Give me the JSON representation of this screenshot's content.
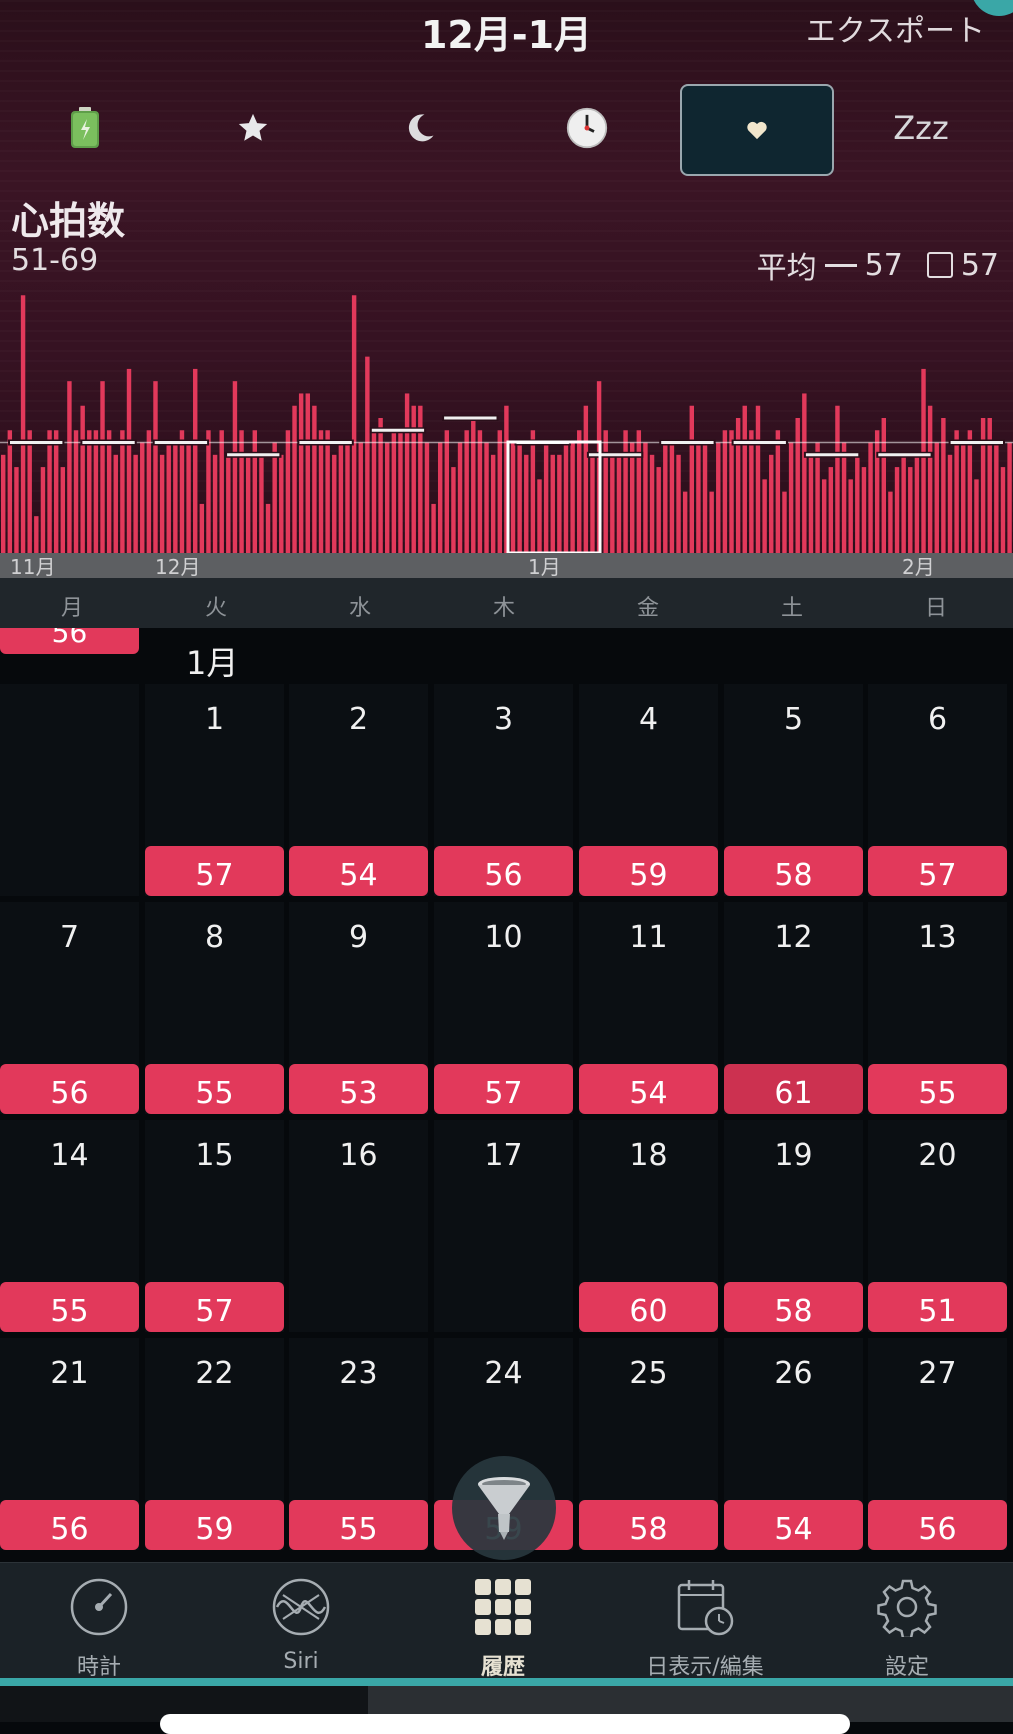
{
  "header": {
    "title": "12月-1月",
    "export_label": "エクスポート"
  },
  "category_tabs": [
    {
      "icon": "battery-icon",
      "selected": false
    },
    {
      "icon": "star-icon",
      "selected": false
    },
    {
      "icon": "moon-icon",
      "selected": false
    },
    {
      "icon": "clock-icon",
      "selected": false
    },
    {
      "icon": "heart-icon",
      "selected": true
    },
    {
      "icon": "zzz-icon",
      "label": "Zzz",
      "selected": false
    }
  ],
  "metric": {
    "title": "心拍数",
    "range": "51-69",
    "average_label": "平均",
    "average_value": "57",
    "box_value": "57"
  },
  "chart_data": {
    "type": "bar",
    "ylim": [
      48,
      70
    ],
    "values": [
      56,
      58,
      55,
      69,
      58,
      51,
      55,
      58,
      58,
      55,
      62,
      58,
      60,
      58,
      58,
      62,
      58,
      56,
      58,
      63,
      56,
      57,
      58,
      62,
      56,
      57,
      57,
      58,
      57,
      63,
      52,
      58,
      56,
      58,
      56,
      62,
      58,
      56,
      58,
      56,
      52,
      57,
      56,
      58,
      60,
      61,
      61,
      60,
      58,
      58,
      56,
      57,
      57,
      69,
      57,
      64,
      58,
      59,
      57,
      58,
      58,
      61,
      60,
      60,
      57,
      52,
      57,
      58,
      55,
      57,
      58,
      59,
      58,
      57,
      56,
      58,
      60,
      57,
      57,
      56,
      58,
      54,
      57,
      56,
      56,
      57,
      57,
      58,
      60,
      56,
      62,
      58,
      56,
      56,
      58,
      57,
      58,
      57,
      56,
      55,
      57,
      57,
      56,
      53,
      60,
      57,
      57,
      53,
      57,
      58,
      58,
      59,
      60,
      58,
      60,
      54,
      56,
      58,
      53,
      57,
      59,
      61,
      56,
      57,
      54,
      55,
      60,
      57,
      54,
      56,
      55,
      57,
      58,
      59,
      53,
      55,
      56,
      55,
      56,
      63,
      60,
      57,
      59,
      56,
      58,
      57,
      58,
      54,
      59,
      59,
      57,
      55,
      57
    ],
    "weekly_averages": [
      57,
      57,
      57,
      56,
      57,
      58,
      59,
      57,
      56,
      57,
      57,
      56,
      56,
      57
    ],
    "month_labels": [
      "11月",
      "12月",
      "1月",
      "2月"
    ],
    "average": 57,
    "grid": false
  },
  "calendar": {
    "weekdays": [
      "月",
      "火",
      "水",
      "木",
      "金",
      "土",
      "日"
    ],
    "month_label": "1月",
    "prev_week_value": "56",
    "days": [
      {
        "day": "",
        "value": ""
      },
      {
        "day": "1",
        "value": "57"
      },
      {
        "day": "2",
        "value": "54"
      },
      {
        "day": "3",
        "value": "56"
      },
      {
        "day": "4",
        "value": "59"
      },
      {
        "day": "5",
        "value": "58"
      },
      {
        "day": "6",
        "value": "57"
      },
      {
        "day": "7",
        "value": "56"
      },
      {
        "day": "8",
        "value": "55"
      },
      {
        "day": "9",
        "value": "53"
      },
      {
        "day": "10",
        "value": "57"
      },
      {
        "day": "11",
        "value": "54"
      },
      {
        "day": "12",
        "value": "61"
      },
      {
        "day": "13",
        "value": "55"
      },
      {
        "day": "14",
        "value": "55"
      },
      {
        "day": "15",
        "value": "57"
      },
      {
        "day": "16",
        "value": ""
      },
      {
        "day": "17",
        "value": ""
      },
      {
        "day": "18",
        "value": "60"
      },
      {
        "day": "19",
        "value": "58"
      },
      {
        "day": "20",
        "value": "51"
      },
      {
        "day": "21",
        "value": "56"
      },
      {
        "day": "22",
        "value": "59"
      },
      {
        "day": "23",
        "value": "55"
      },
      {
        "day": "24",
        "value": "59"
      },
      {
        "day": "25",
        "value": "58"
      },
      {
        "day": "26",
        "value": "54"
      },
      {
        "day": "27",
        "value": "56"
      }
    ]
  },
  "tabbar": [
    {
      "label": "時計",
      "icon": "gauge-icon",
      "active": false
    },
    {
      "label": "Siri",
      "icon": "siri-icon",
      "active": false
    },
    {
      "label": "履歴",
      "icon": "grid-icon",
      "active": true
    },
    {
      "label": "日表示/編集",
      "icon": "calendar-clock-icon",
      "active": false
    },
    {
      "label": "設定",
      "icon": "gear-icon",
      "active": false
    }
  ],
  "colors": {
    "accent": "#e2395b",
    "teal": "#3aa7a7"
  }
}
